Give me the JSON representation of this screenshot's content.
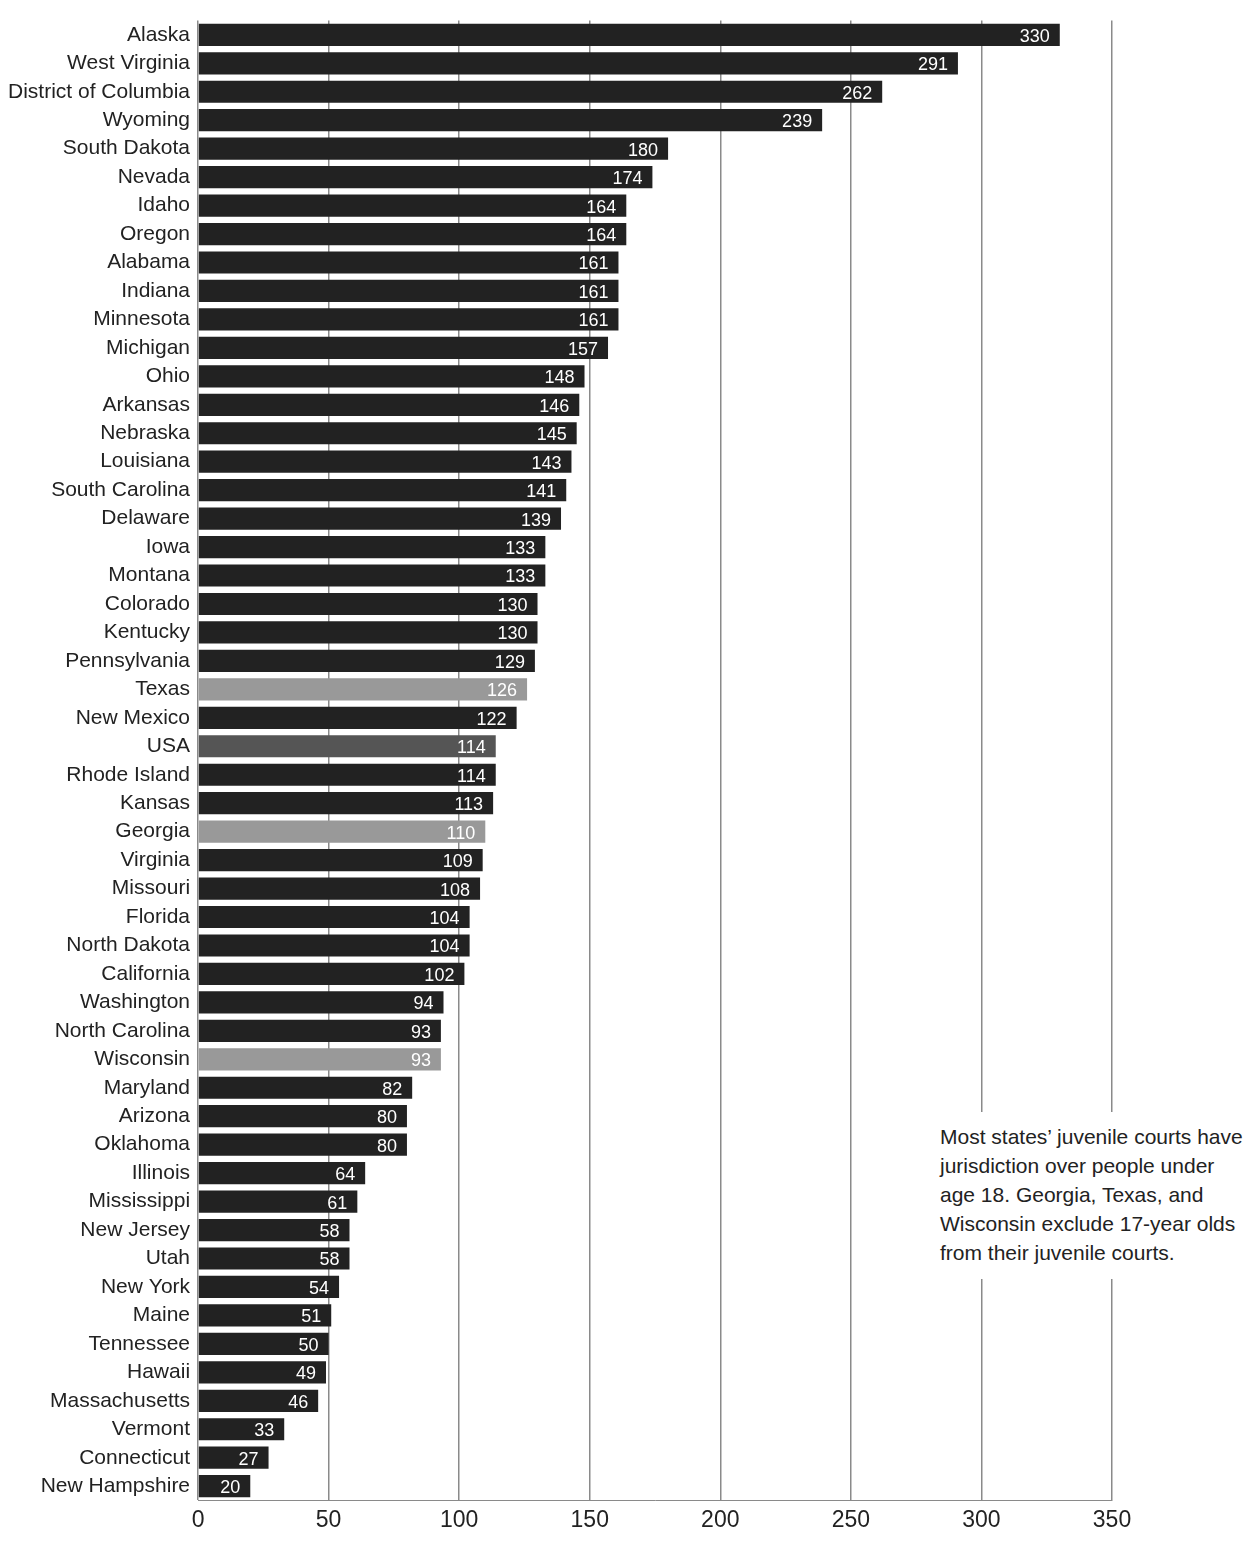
{
  "chart_data": {
    "type": "bar",
    "orientation": "horizontal",
    "categories": [
      "Alaska",
      "West Virginia",
      "District of Columbia",
      "Wyoming",
      "South Dakota",
      "Nevada",
      "Idaho",
      "Oregon",
      "Alabama",
      "Indiana",
      "Minnesota",
      "Michigan",
      "Ohio",
      "Arkansas",
      "Nebraska",
      "Louisiana",
      "South Carolina",
      "Delaware",
      "Iowa",
      "Montana",
      "Colorado",
      "Kentucky",
      "Pennsylvania",
      "Texas",
      "New Mexico",
      "USA",
      "Rhode Island",
      "Kansas",
      "Georgia",
      "Virginia",
      "Missouri",
      "Florida",
      "North Dakota",
      "California",
      "Washington",
      "North Carolina",
      "Wisconsin",
      "Maryland",
      "Arizona",
      "Oklahoma",
      "Illinois",
      "Mississippi",
      "New Jersey",
      "Utah",
      "New York",
      "Maine",
      "Tennessee",
      "Hawaii",
      "Massachusetts",
      "Vermont",
      "Connecticut",
      "New Hampshire"
    ],
    "values": [
      330,
      291,
      262,
      239,
      180,
      174,
      164,
      164,
      161,
      161,
      161,
      157,
      148,
      146,
      145,
      143,
      141,
      139,
      133,
      133,
      130,
      130,
      129,
      126,
      122,
      114,
      114,
      113,
      110,
      109,
      108,
      104,
      104,
      102,
      94,
      93,
      93,
      82,
      80,
      80,
      64,
      61,
      58,
      58,
      54,
      51,
      50,
      49,
      46,
      33,
      27,
      20
    ],
    "colors": [
      "#222222",
      "#222222",
      "#222222",
      "#222222",
      "#222222",
      "#222222",
      "#222222",
      "#222222",
      "#222222",
      "#222222",
      "#222222",
      "#222222",
      "#222222",
      "#222222",
      "#222222",
      "#222222",
      "#222222",
      "#222222",
      "#222222",
      "#222222",
      "#222222",
      "#222222",
      "#222222",
      "#999999",
      "#222222",
      "#555555",
      "#222222",
      "#222222",
      "#999999",
      "#222222",
      "#222222",
      "#222222",
      "#222222",
      "#222222",
      "#222222",
      "#222222",
      "#999999",
      "#222222",
      "#222222",
      "#222222",
      "#222222",
      "#222222",
      "#222222",
      "#222222",
      "#222222",
      "#222222",
      "#222222",
      "#222222",
      "#222222",
      "#222222",
      "#222222",
      "#222222"
    ],
    "xlim": [
      0,
      350
    ],
    "xticks": [
      0,
      50,
      100,
      150,
      200,
      250,
      300,
      350
    ],
    "grid": true,
    "data_labels": true,
    "annotation": "Most states’ juvenile courts have jurisdiction over people under age 18. Georgia, Texas, and Wisconsin exclude 17-year olds from their juvenile courts."
  }
}
